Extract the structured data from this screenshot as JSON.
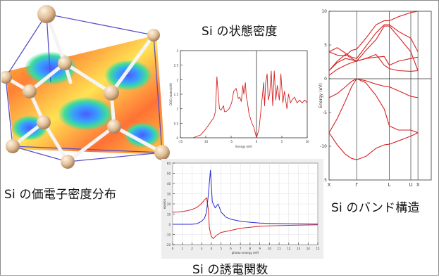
{
  "captions": {
    "density_of_states": "Si の状態密度",
    "valence_density": "Si の価電子密度分布",
    "band_structure": "Si のバンド構造",
    "dielectric": "Si の誘電関数"
  },
  "chart_data": [
    {
      "type": "line",
      "id": "dos",
      "title": "",
      "xlabel": "Energy (eV)",
      "ylabel": "DOS (states/eV)",
      "xlim": [
        -15,
        10
      ],
      "ylim": [
        0,
        3
      ],
      "x_ticks": [
        "-15",
        "-10",
        "-5",
        "0",
        "5",
        "10"
      ],
      "y_ticks": [
        "0",
        "0.5",
        "1",
        "1.5",
        "2",
        "2.5",
        "3"
      ],
      "series": [
        {
          "color": "#d62020",
          "x": [
            -12.5,
            -11,
            -10,
            -9,
            -8.4,
            -8.1,
            -7.8,
            -7.3,
            -7,
            -6.5,
            -6.3,
            -6,
            -5.4,
            -4.9,
            -4.5,
            -4,
            -3.6,
            -3.3,
            -3,
            -2.7,
            -2.5,
            -2.3,
            -2.2,
            -2,
            -1.8,
            -1.5,
            -1,
            -0.5,
            0,
            0.5,
            0.9,
            1.2,
            1.4,
            1.6,
            1.8,
            2.1,
            2.3,
            2.6,
            2.9,
            3.2,
            3.5,
            3.8,
            4.1,
            4.5,
            4.8,
            5.2,
            5.5,
            6,
            6.3,
            6.7,
            7,
            7.5,
            8,
            8.5,
            9,
            9.5,
            10
          ],
          "y": [
            0,
            0.1,
            0.3,
            0.55,
            0.7,
            0.9,
            2.1,
            1.0,
            0.95,
            1.1,
            0.9,
            0.9,
            1.0,
            1.2,
            1.6,
            1.7,
            1.35,
            1.4,
            1.25,
            1.8,
            1.5,
            1.75,
            1.9,
            1.4,
            1.25,
            0.85,
            0.55,
            0.35,
            0,
            0.3,
            1.0,
            1.5,
            1.9,
            1.1,
            1.9,
            2.2,
            1.3,
            1.5,
            2.3,
            1.1,
            2.3,
            1.3,
            1.8,
            1.3,
            2.2,
            1.2,
            1.6,
            1.0,
            1.5,
            1.2,
            1.3,
            1.4,
            1.2,
            1.3,
            1.2,
            1.3,
            1.2
          ]
        }
      ]
    },
    {
      "type": "line",
      "id": "bands",
      "title": "",
      "xlabel": "",
      "ylabel": "Energy (eV)",
      "xlim": [
        0,
        5
      ],
      "ylim": [
        -15,
        10
      ],
      "x_ticks": [
        "X",
        "Γ",
        "L",
        "U",
        "X"
      ],
      "x_tick_pos": [
        0,
        1.35,
        2.95,
        4.0,
        4.35
      ],
      "y_ticks": [
        "-15",
        "-10",
        "-5",
        "0",
        "5",
        "10"
      ],
      "series": [
        {
          "color": "#d62020",
          "x": [
            0,
            0.4,
            0.8,
            1.1,
            1.35,
            1.8,
            2.3,
            2.7,
            2.95,
            3.4,
            4.0,
            4.35
          ],
          "y": [
            -8,
            -9.8,
            -11.2,
            -11.8,
            -12,
            -11.5,
            -10.3,
            -9.8,
            -9.7,
            -9.2,
            -8.5,
            -8
          ]
        },
        {
          "color": "#d62020",
          "x": [
            0,
            0.4,
            0.8,
            1.1,
            1.35,
            1.8,
            2.3,
            2.7,
            2.95,
            3.4,
            4.0,
            4.35
          ],
          "y": [
            -8,
            -5.9,
            -3.3,
            -1.2,
            0,
            -0.6,
            -2.5,
            -4.5,
            -7,
            -7.6,
            -7.6,
            -8
          ]
        },
        {
          "color": "#d62020",
          "x": [
            0,
            0.4,
            0.8,
            1.1,
            1.35,
            1.8,
            2.3,
            2.7,
            2.95,
            3.4,
            4.0,
            4.35
          ],
          "y": [
            -2.8,
            -2.2,
            -1.2,
            -0.4,
            0,
            -0.3,
            -0.8,
            -1.1,
            -1.2,
            -1.8,
            -2.6,
            -2.8
          ]
        },
        {
          "color": "#d62020",
          "x": [
            0,
            0.4,
            0.8,
            1.1,
            1.35,
            1.8,
            2.3,
            2.7,
            2.95,
            3.4,
            4.0,
            4.35
          ],
          "y": [
            1.2,
            2.6,
            3.6,
            3.0,
            2.6,
            3.0,
            3.6,
            2.0,
            1.5,
            1.2,
            1.1,
            1.2
          ]
        },
        {
          "color": "#d62020",
          "x": [
            0,
            0.4,
            0.8,
            1.1,
            1.35,
            1.8,
            2.3,
            2.7,
            2.95,
            3.4,
            4.0,
            4.35
          ],
          "y": [
            1.2,
            2.4,
            3.0,
            2.8,
            2.6,
            4.2,
            5.8,
            7.8,
            7.8,
            6.2,
            4.0,
            1.2
          ]
        },
        {
          "color": "#d62020",
          "x": [
            0,
            0.4,
            0.8,
            1.1,
            1.35,
            1.8,
            2.3,
            2.7,
            2.95,
            3.4,
            4.0,
            4.35
          ],
          "y": [
            4.0,
            4.6,
            3.8,
            3.2,
            3.0,
            4.8,
            6.8,
            8.0,
            8.0,
            7.0,
            6.0,
            4.0
          ]
        },
        {
          "color": "#d62020",
          "x": [
            0,
            0.4,
            0.8,
            1.1,
            1.35,
            1.8,
            2.3,
            2.7,
            2.95,
            3.4,
            4.0,
            4.35
          ],
          "y": [
            4.0,
            3.5,
            3.4,
            4.2,
            4.4,
            6.0,
            8.0,
            8.6,
            8.6,
            9.2,
            9.8,
            10
          ]
        },
        {
          "color": "#d62020",
          "x": [
            0,
            0.4,
            0.8,
            1.1,
            1.35,
            1.8,
            2.3,
            2.7,
            2.95,
            3.4,
            4.0,
            4.35
          ],
          "y": [
            0.5,
            1.4,
            2.0,
            2.4,
            2.6,
            3.0,
            3.2,
            3.3,
            2.0,
            2.6,
            3.0,
            3.2
          ]
        }
      ]
    },
    {
      "type": "line",
      "id": "dielectric",
      "title": "",
      "xlabel": "photon energy (eV)",
      "ylabel": "epsilon",
      "xlim": [
        0,
        15
      ],
      "ylim": [
        -20,
        60
      ],
      "x_ticks": [
        "0",
        "1",
        "2",
        "3",
        "4",
        "5",
        "6",
        "7",
        "8",
        "9",
        "10",
        "11",
        "12",
        "13",
        "14",
        "15"
      ],
      "y_ticks": [
        "-20",
        "-10",
        "0",
        "10",
        "20",
        "30",
        "40",
        "50",
        "60"
      ],
      "series": [
        {
          "color": "#d62020",
          "x": [
            0,
            0.5,
            1,
            1.5,
            2,
            2.5,
            3,
            3.3,
            3.5,
            3.7,
            3.8,
            4.0,
            4.2,
            4.5,
            5,
            6,
            7,
            8,
            9,
            10,
            12,
            15
          ],
          "y": [
            11.8,
            12,
            12.5,
            13.3,
            14.5,
            16.5,
            20.5,
            24,
            26,
            14,
            -4,
            -12,
            -14,
            -11,
            -8,
            -6,
            -4,
            -3,
            -2,
            -1.5,
            -1,
            -0.5
          ]
        },
        {
          "color": "#2b2bd0",
          "x": [
            0,
            1,
            2,
            2.5,
            3,
            3.3,
            3.5,
            3.7,
            3.9,
            4.1,
            4.4,
            4.7,
            5,
            5.5,
            6,
            7,
            8,
            9,
            10,
            12,
            15
          ],
          "y": [
            0,
            0,
            0,
            0.5,
            3,
            6,
            12,
            30,
            53,
            22,
            16,
            20,
            12,
            7,
            5,
            3,
            2,
            1.2,
            0.8,
            0.4,
            0.2
          ]
        }
      ]
    }
  ]
}
